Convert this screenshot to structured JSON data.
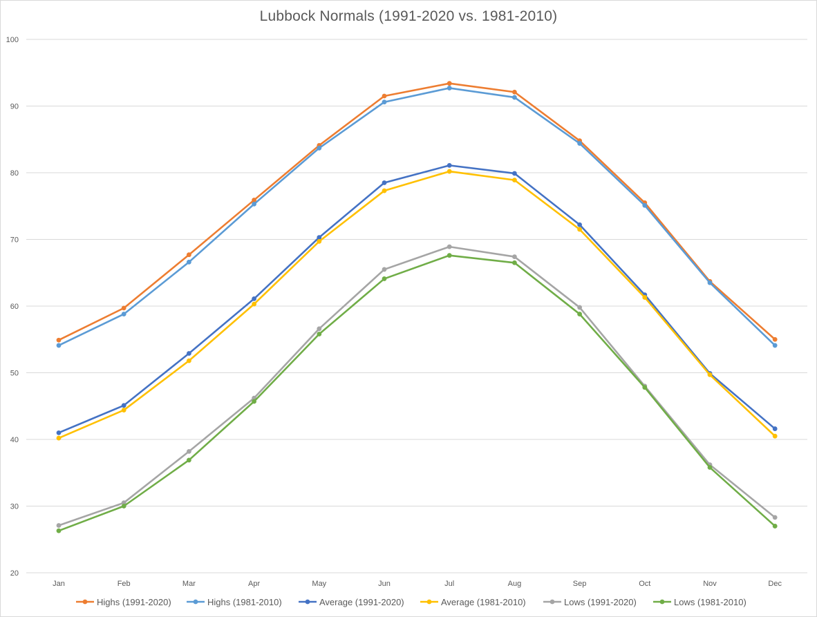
{
  "chart_data": {
    "type": "line",
    "title": "Lubbock Normals (1991-2020 vs. 1981-2010)",
    "xlabel": "",
    "ylabel": "",
    "categories": [
      "Jan",
      "Feb",
      "Mar",
      "Apr",
      "May",
      "Jun",
      "Jul",
      "Aug",
      "Sep",
      "Oct",
      "Nov",
      "Dec"
    ],
    "ylim": [
      20,
      100
    ],
    "yticks": [
      20,
      30,
      40,
      50,
      60,
      70,
      80,
      90,
      100
    ],
    "grid": "horizontal",
    "legend_position": "bottom",
    "series": [
      {
        "name": "Highs (1991-2020)",
        "color": "#ED7D31",
        "values": [
          54.9,
          59.7,
          67.7,
          75.9,
          84.1,
          91.5,
          93.4,
          92.1,
          84.8,
          75.5,
          63.7,
          55.0
        ]
      },
      {
        "name": "Highs (1981-2010)",
        "color": "#5B9BD5",
        "values": [
          54.1,
          58.8,
          66.6,
          75.3,
          83.7,
          90.6,
          92.7,
          91.3,
          84.4,
          75.1,
          63.5,
          54.1
        ]
      },
      {
        "name": "Average (1991-2020)",
        "color": "#4472C4",
        "values": [
          41.0,
          45.1,
          52.9,
          61.1,
          70.3,
          78.5,
          81.1,
          79.9,
          72.2,
          61.7,
          49.9,
          41.6
        ]
      },
      {
        "name": "Average (1981-2010)",
        "color": "#FFC000",
        "values": [
          40.2,
          44.4,
          51.8,
          60.3,
          69.7,
          77.3,
          80.2,
          78.9,
          71.5,
          61.3,
          49.7,
          40.5
        ]
      },
      {
        "name": "Lows (1991-2020)",
        "color": "#A5A5A5",
        "values": [
          27.1,
          30.5,
          38.2,
          46.2,
          56.6,
          65.5,
          68.9,
          67.4,
          59.8,
          48.0,
          36.2,
          28.3
        ]
      },
      {
        "name": "Lows (1981-2010)",
        "color": "#70AD47",
        "values": [
          26.3,
          30.0,
          36.9,
          45.7,
          55.8,
          64.1,
          67.6,
          66.5,
          58.8,
          47.8,
          35.8,
          27.0
        ]
      }
    ]
  }
}
